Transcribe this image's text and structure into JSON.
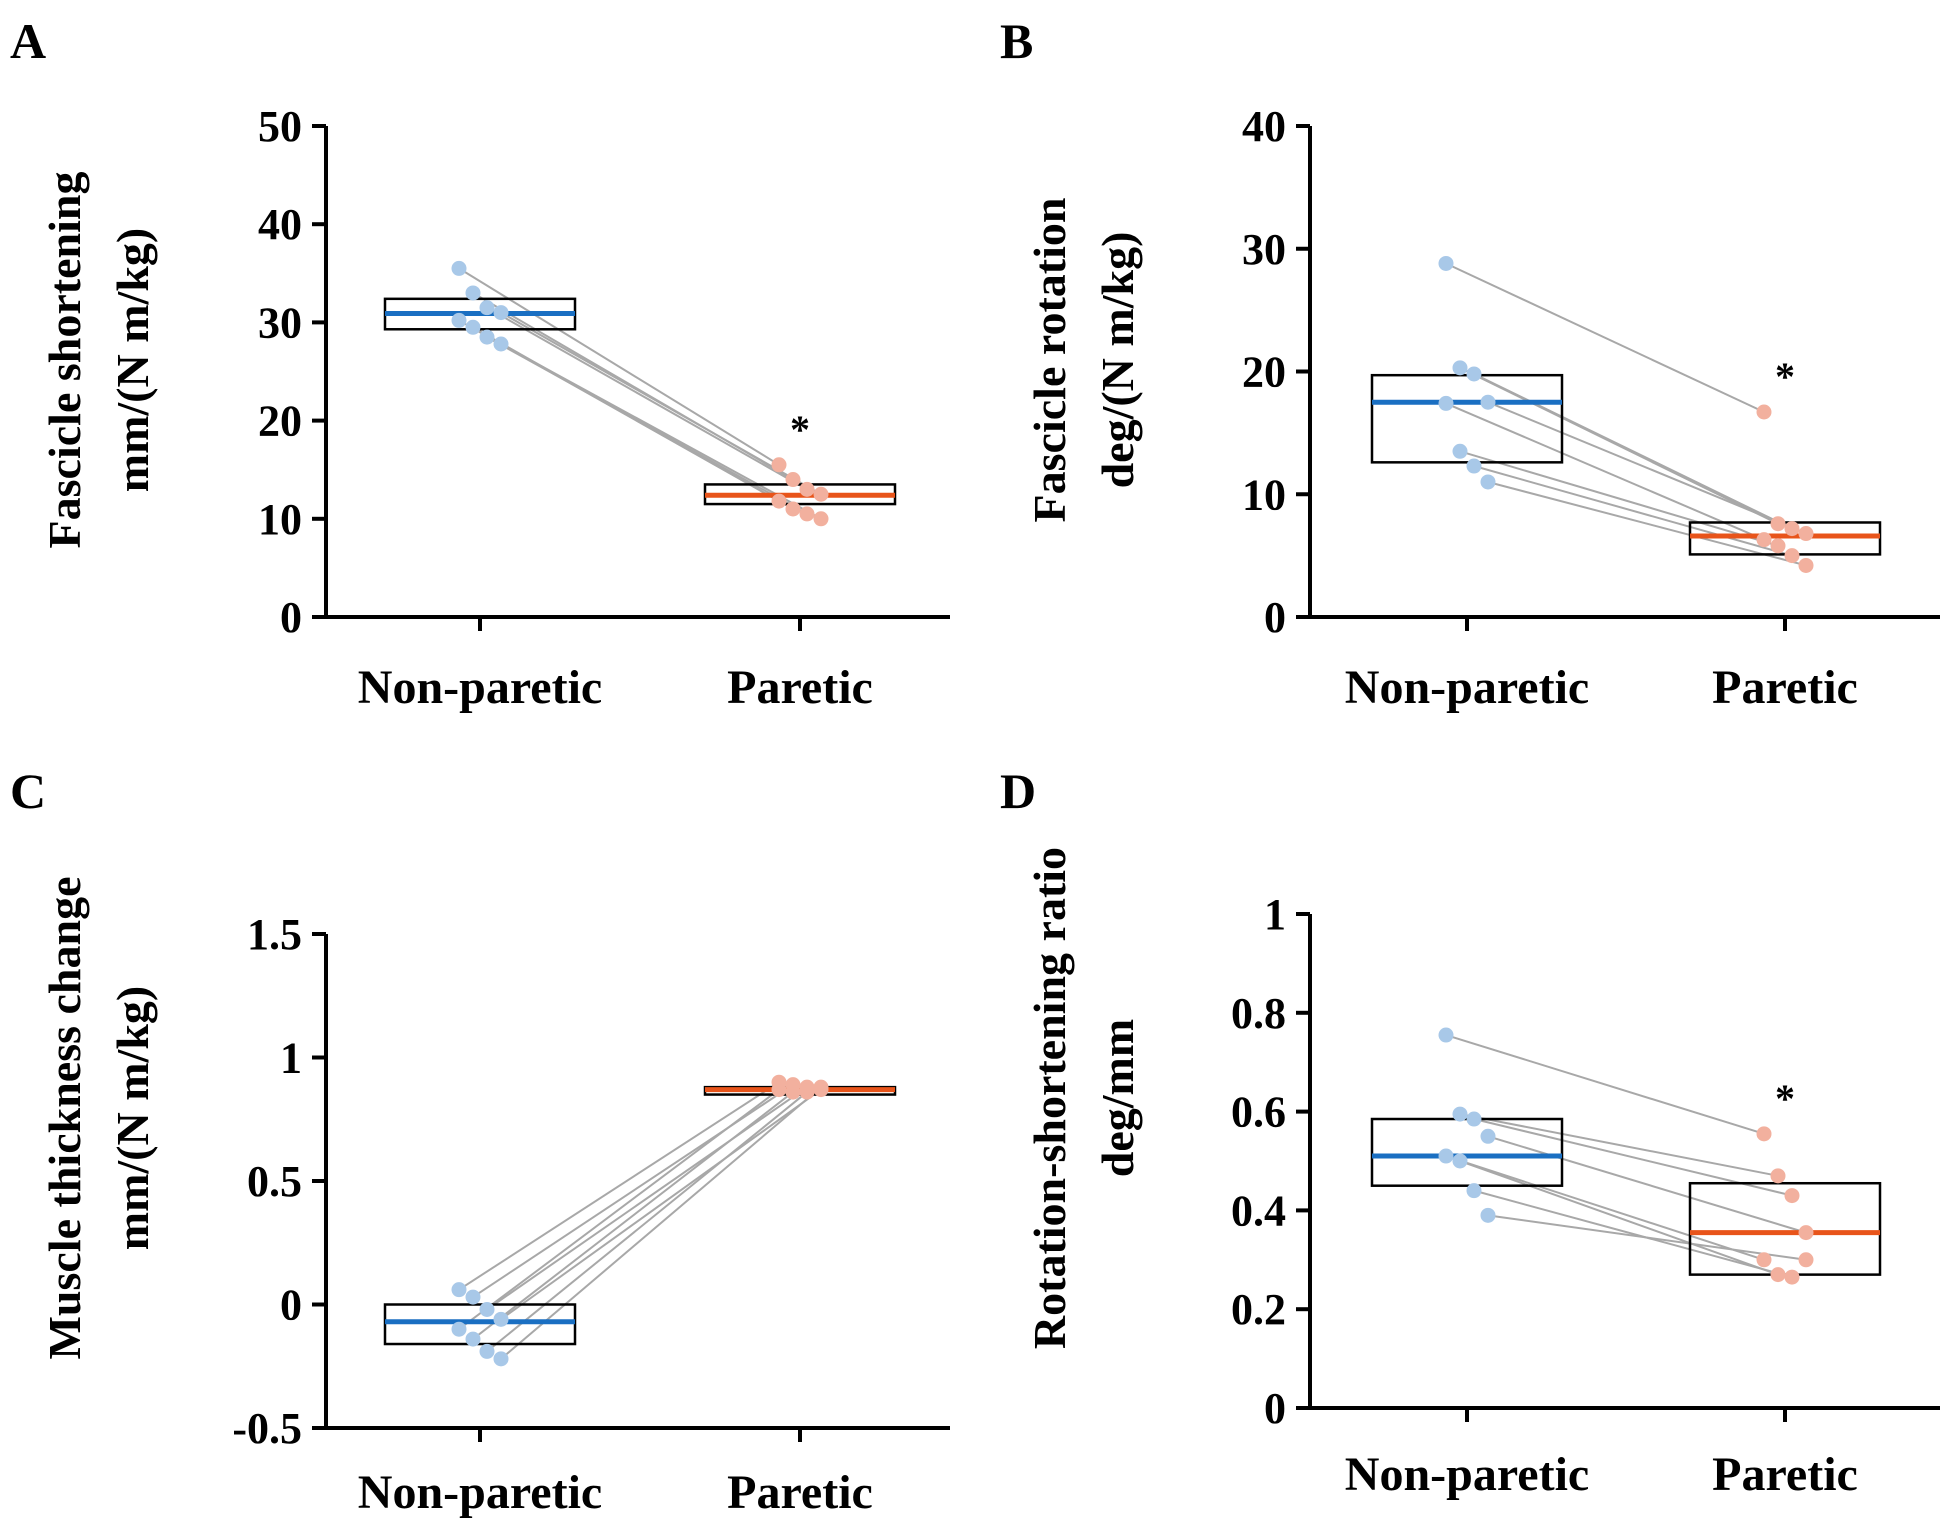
{
  "colors": {
    "non_paretic": "#1a6fc2",
    "paretic": "#e8541a",
    "non_paretic_point": "#a8c8e8",
    "paretic_point": "#f2b09e"
  },
  "chart_data": [
    {
      "type": "box",
      "panel": "A",
      "ylabel": "Fascicle shortening",
      "ylabel2": "mm/(N m/kg)",
      "categories": [
        "Non-paretic",
        "Paretic"
      ],
      "ylim": [
        0,
        50
      ],
      "yticks": [
        0,
        10,
        20,
        30,
        40,
        50
      ],
      "ytick_labels": [
        "0",
        "10",
        "20",
        "30",
        "40",
        "50"
      ],
      "boxes": [
        {
          "low": 29.3,
          "high": 32.4,
          "median": 30.9
        },
        {
          "low": 11.5,
          "high": 13.5,
          "median": 12.4
        }
      ],
      "pairs": [
        [
          35.5,
          15.5
        ],
        [
          33.0,
          14.0
        ],
        [
          31.5,
          13.0
        ],
        [
          31.0,
          12.5
        ],
        [
          30.2,
          11.8
        ],
        [
          29.5,
          11.0
        ],
        [
          28.5,
          10.5
        ],
        [
          27.8,
          10.0
        ]
      ],
      "significance": [
        "",
        "*"
      ]
    },
    {
      "type": "box",
      "panel": "B",
      "ylabel": "Fascicle rotation",
      "ylabel2": "deg/(N m/kg)",
      "categories": [
        "Non-paretic",
        "Paretic"
      ],
      "ylim": [
        0,
        40
      ],
      "yticks": [
        0,
        10,
        20,
        30,
        40
      ],
      "ytick_labels": [
        "0",
        "10",
        "20",
        "30",
        "40"
      ],
      "boxes": [
        {
          "low": 12.6,
          "high": 19.7,
          "median": 17.5
        },
        {
          "low": 5.1,
          "high": 7.7,
          "median": 6.6
        }
      ],
      "pairs": [
        [
          28.8,
          16.7
        ],
        [
          20.3,
          7.6
        ],
        [
          19.8,
          7.2
        ],
        [
          17.5,
          6.8
        ],
        [
          17.4,
          6.3
        ],
        [
          13.5,
          5.8
        ],
        [
          12.3,
          5.0
        ],
        [
          11.0,
          4.2
        ]
      ],
      "significance": [
        "",
        "*"
      ]
    },
    {
      "type": "box",
      "panel": "C",
      "ylabel": "Muscle thickness change",
      "ylabel2": "mm/(N m/kg)",
      "categories": [
        "Non-paretic",
        "Paretic"
      ],
      "ylim": [
        -0.5,
        1.5
      ],
      "yticks": [
        -0.5,
        0,
        0.5,
        1,
        1.5
      ],
      "ytick_labels": [
        "-0.5",
        "0",
        "0.5",
        "1",
        "1.5"
      ],
      "boxes": [
        {
          "low": -0.16,
          "high": 0.0,
          "median": -0.07
        },
        {
          "low": 0.85,
          "high": 0.88,
          "median": 0.87
        }
      ],
      "pairs": [
        [
          0.06,
          0.9
        ],
        [
          0.03,
          0.89
        ],
        [
          -0.02,
          0.88
        ],
        [
          -0.06,
          0.87
        ],
        [
          -0.1,
          0.87
        ],
        [
          -0.14,
          0.86
        ],
        [
          -0.19,
          0.86
        ],
        [
          -0.22,
          0.88
        ]
      ],
      "significance": [
        "",
        ""
      ]
    },
    {
      "type": "box",
      "panel": "D",
      "ylabel": "Rotation-shortening ratio",
      "ylabel2": "deg/mm",
      "categories": [
        "Non-paretic",
        "Paretic"
      ],
      "ylim": [
        0,
        1
      ],
      "yticks": [
        0,
        0.2,
        0.4,
        0.6,
        0.8,
        1
      ],
      "ytick_labels": [
        "0",
        "0.2",
        "0.4",
        "0.6",
        "0.8",
        "1"
      ],
      "boxes": [
        {
          "low": 0.45,
          "high": 0.585,
          "median": 0.51
        },
        {
          "low": 0.27,
          "high": 0.455,
          "median": 0.355
        }
      ],
      "pairs": [
        [
          0.755,
          0.555
        ],
        [
          0.595,
          0.47
        ],
        [
          0.585,
          0.43
        ],
        [
          0.55,
          0.355
        ],
        [
          0.51,
          0.3
        ],
        [
          0.5,
          0.27
        ],
        [
          0.44,
          0.265
        ],
        [
          0.39,
          0.3
        ]
      ],
      "significance": [
        "",
        "*"
      ]
    }
  ]
}
